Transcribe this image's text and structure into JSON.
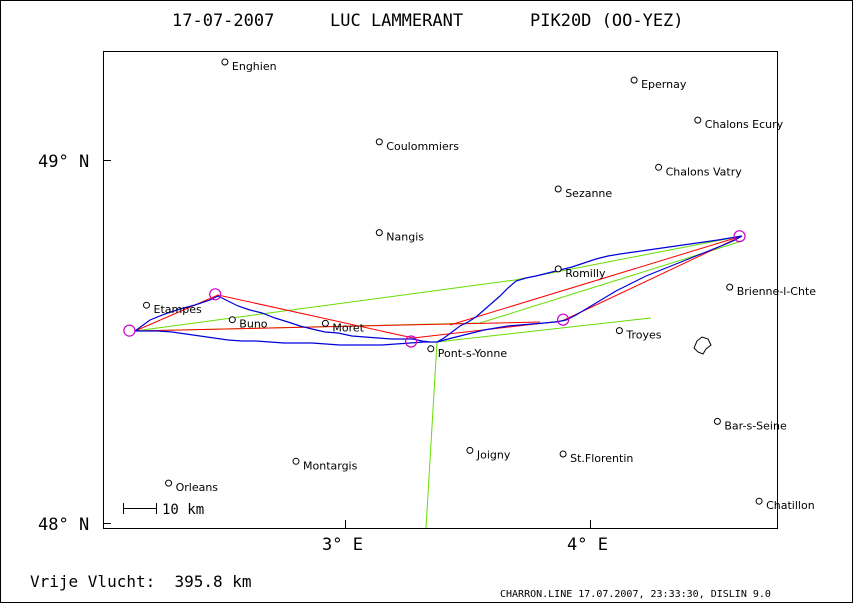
{
  "header": {
    "date": "17-07-2007",
    "pilot": "LUC LAMMERANT",
    "aircraft": "PIK20D (OO-YEZ)"
  },
  "axes": {
    "y_labels": [
      "49° N",
      "48° N"
    ],
    "x_labels": [
      "3° E",
      "4° E"
    ]
  },
  "scale_bar": {
    "label": "10 km"
  },
  "footer": {
    "distance_label": "Vrije Vlucht:  395.8 km",
    "credit": "CHARRON.LINE 17.07.2007, 23:33:30, DISLIN 9.0"
  },
  "towns": [
    {
      "name": "Enghien",
      "lon": 2.51,
      "lat": 49.27
    },
    {
      "name": "Epernay",
      "lon": 4.18,
      "lat": 49.22
    },
    {
      "name": "Chalons Ecury",
      "lon": 4.44,
      "lat": 49.11
    },
    {
      "name": "Coulommiers",
      "lon": 3.14,
      "lat": 49.05
    },
    {
      "name": "Chalons Vatry",
      "lon": 4.28,
      "lat": 48.98
    },
    {
      "name": "Sezanne",
      "lon": 3.87,
      "lat": 48.92
    },
    {
      "name": "Nangis",
      "lon": 3.14,
      "lat": 48.8
    },
    {
      "name": "Romilly",
      "lon": 3.87,
      "lat": 48.7
    },
    {
      "name": "Brienne-l-Chte",
      "lon": 4.57,
      "lat": 48.65
    },
    {
      "name": "Etampes",
      "lon": 2.19,
      "lat": 48.6
    },
    {
      "name": "Buno",
      "lon": 2.54,
      "lat": 48.56
    },
    {
      "name": "Moret",
      "lon": 2.92,
      "lat": 48.55
    },
    {
      "name": "Troyes",
      "lon": 4.12,
      "lat": 48.53
    },
    {
      "name": "Pont-s-Yonne",
      "lon": 3.35,
      "lat": 48.48
    },
    {
      "name": "Bar-s-Seine",
      "lon": 4.52,
      "lat": 48.28
    },
    {
      "name": "Joigny",
      "lon": 3.51,
      "lat": 48.2
    },
    {
      "name": "St.Florentin",
      "lon": 3.89,
      "lat": 48.19
    },
    {
      "name": "Montargis",
      "lon": 2.8,
      "lat": 48.17
    },
    {
      "name": "Orleans",
      "lon": 2.28,
      "lat": 48.11
    },
    {
      "name": "Chatillon",
      "lon": 4.69,
      "lat": 48.06
    }
  ],
  "turnpoints": [
    {
      "lon": 2.12,
      "lat": 48.53
    },
    {
      "lon": 2.47,
      "lat": 48.63
    },
    {
      "lon": 3.27,
      "lat": 48.5
    },
    {
      "lon": 3.89,
      "lat": 48.56
    },
    {
      "lon": 4.61,
      "lat": 48.79
    }
  ],
  "colors": {
    "frame": "#000000",
    "track": "#0000dd",
    "red_route": "#ff0000",
    "green_route": "#66dd00",
    "turnpoint": "#cc00cc",
    "text": "#000000"
  }
}
